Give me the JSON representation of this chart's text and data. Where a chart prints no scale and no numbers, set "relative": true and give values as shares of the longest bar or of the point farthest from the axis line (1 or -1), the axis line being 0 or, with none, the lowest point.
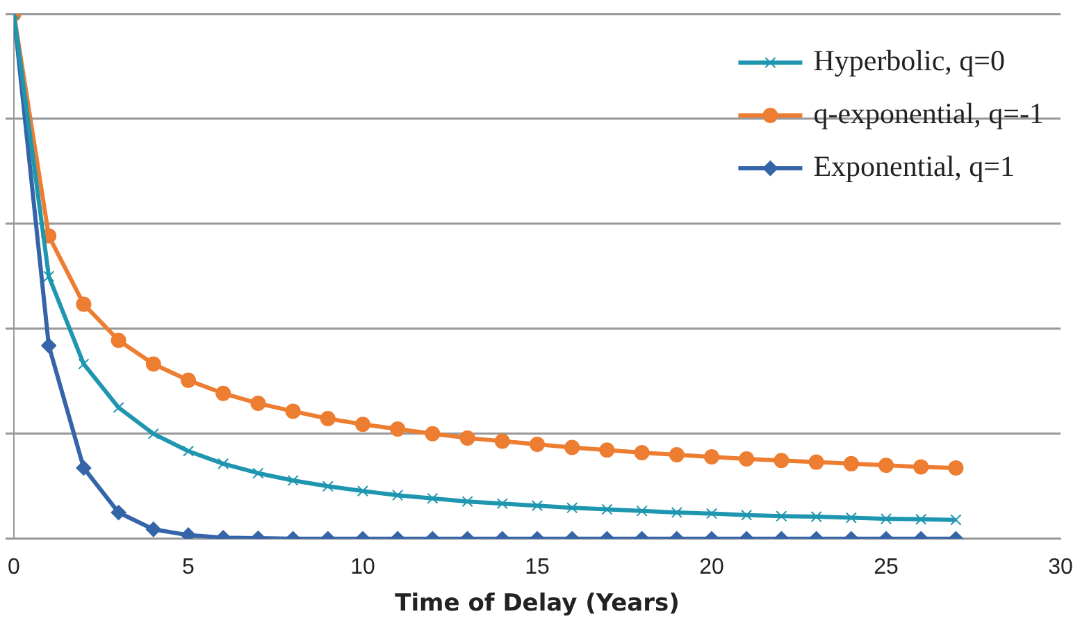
{
  "chart_data": {
    "type": "line",
    "xlabel": "Time of Delay (Years)",
    "relative": true,
    "xlim": [
      0,
      30
    ],
    "xticks": [
      0,
      5,
      10,
      15,
      20,
      25,
      30
    ],
    "grid": "y",
    "legend": "top right",
    "x": [
      0,
      1,
      2,
      3,
      4,
      5,
      6,
      7,
      8,
      9,
      10,
      11,
      12,
      13,
      14,
      15,
      16,
      17,
      18,
      19,
      20,
      21,
      22,
      23,
      24,
      25,
      26,
      27
    ],
    "series": [
      {
        "name": "Hyperbolic, q=0",
        "color": "#1f96b0",
        "marker": "cross",
        "values": [
          1,
          0.5,
          0.333,
          0.25,
          0.2,
          0.167,
          0.143,
          0.125,
          0.111,
          0.1,
          0.091,
          0.083,
          0.077,
          0.071,
          0.067,
          0.063,
          0.059,
          0.056,
          0.053,
          0.05,
          0.048,
          0.045,
          0.043,
          0.042,
          0.04,
          0.038,
          0.037,
          0.036
        ]
      },
      {
        "name": "q-exponential, q=-1",
        "color": "#ed7d31",
        "marker": "circle",
        "values": [
          1,
          0.577,
          0.447,
          0.378,
          0.333,
          0.302,
          0.277,
          0.258,
          0.243,
          0.229,
          0.218,
          0.209,
          0.2,
          0.192,
          0.186,
          0.18,
          0.174,
          0.169,
          0.164,
          0.16,
          0.156,
          0.152,
          0.149,
          0.146,
          0.143,
          0.14,
          0.137,
          0.135
        ]
      },
      {
        "name": "Exponential, q=1",
        "color": "#3565a8",
        "marker": "diamond",
        "values": [
          1,
          0.368,
          0.135,
          0.05,
          0.018,
          0.007,
          0.002,
          0.001,
          0,
          0,
          0,
          0,
          0,
          0,
          0,
          0,
          0,
          0,
          0,
          0,
          0,
          0,
          0,
          0,
          0,
          0,
          0,
          0
        ]
      }
    ]
  }
}
